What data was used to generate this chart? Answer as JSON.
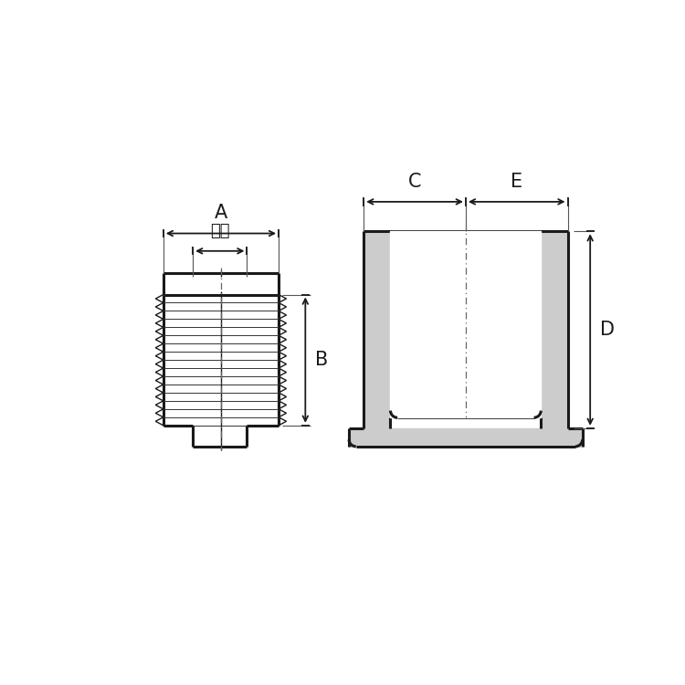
{
  "bg_color": "#ffffff",
  "line_color": "#1a1a1a",
  "label_A": "A",
  "label_neji": "ねじ",
  "label_B": "B",
  "label_C": "C",
  "label_E": "E",
  "label_D": "D",
  "fig_width": 7.5,
  "fig_height": 7.5,
  "gray_fill": "#cccccc",
  "white_fill": "#ffffff",
  "dim_line_color": "#222222"
}
